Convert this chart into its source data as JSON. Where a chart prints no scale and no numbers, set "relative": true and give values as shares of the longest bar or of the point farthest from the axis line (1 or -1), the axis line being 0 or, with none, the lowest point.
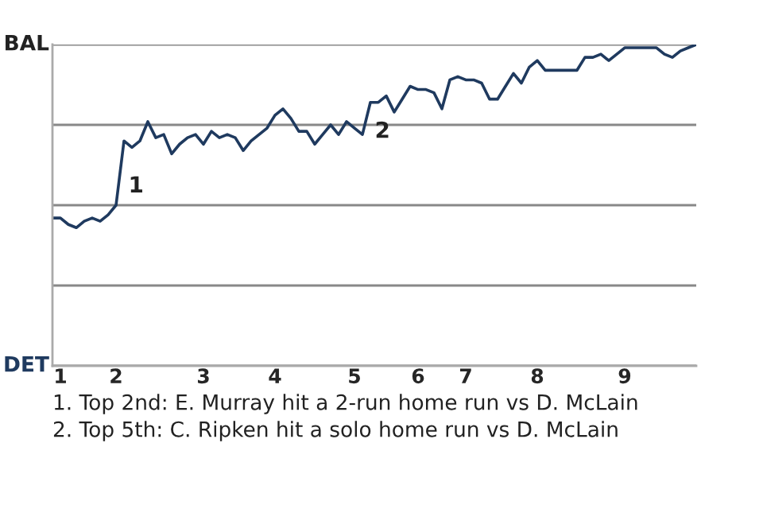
{
  "chart_data": {
    "type": "line",
    "relative": true,
    "categories": [
      null,
      "1",
      null,
      null,
      null,
      null,
      null,
      null,
      "2",
      null,
      null,
      null,
      null,
      null,
      null,
      null,
      null,
      null,
      null,
      "3",
      null,
      null,
      null,
      null,
      null,
      null,
      null,
      null,
      "4",
      null,
      null,
      null,
      null,
      null,
      null,
      null,
      null,
      null,
      "5",
      null,
      null,
      null,
      null,
      null,
      null,
      null,
      "6",
      null,
      null,
      null,
      null,
      null,
      "7",
      null,
      null,
      null,
      null,
      null,
      null,
      null,
      null,
      "8",
      null,
      null,
      null,
      null,
      null,
      null,
      null,
      null,
      null,
      null,
      "9",
      null,
      null,
      null,
      null,
      null,
      null,
      null,
      null,
      null
    ],
    "series": [
      {
        "color": "#1f3a5f",
        "values": [
          0.46,
          0.46,
          0.44,
          0.43,
          0.45,
          0.46,
          0.45,
          0.47,
          0.5,
          0.7,
          0.68,
          0.7,
          0.76,
          0.71,
          0.72,
          0.66,
          0.69,
          0.71,
          0.72,
          0.69,
          0.73,
          0.71,
          0.72,
          0.71,
          0.67,
          0.7,
          0.72,
          0.74,
          0.78,
          0.8,
          0.77,
          0.73,
          0.73,
          0.69,
          0.72,
          0.75,
          0.72,
          0.76,
          0.74,
          0.72,
          0.82,
          0.82,
          0.84,
          0.79,
          0.83,
          0.87,
          0.86,
          0.86,
          0.85,
          0.8,
          0.89,
          0.9,
          0.89,
          0.89,
          0.88,
          0.83,
          0.83,
          0.87,
          0.91,
          0.88,
          0.93,
          0.95,
          0.92,
          0.92,
          0.92,
          0.92,
          0.92,
          0.96,
          0.96,
          0.97,
          0.95,
          0.97,
          0.99,
          0.99,
          0.99,
          0.99,
          0.99,
          0.97,
          0.96,
          0.98,
          0.99,
          1.0
        ]
      }
    ],
    "grid": "y",
    "annotations": [
      "BAL",
      "DET",
      "1",
      "2",
      "1. Top 2nd: E. Murray hit a 2-run home run vs D. McLain",
      "2. Top 5th: C. Ripken hit a solo home run vs D. McLain"
    ]
  }
}
